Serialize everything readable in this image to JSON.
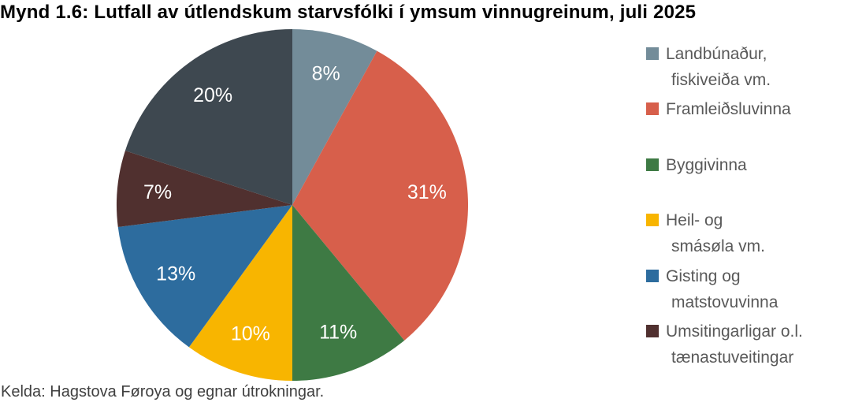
{
  "title": "Mynd 1.6: Lutfall av útlendskum starvsfólki í ymsum vinnugreinum, juli 2025",
  "source": "Kelda: Hagstova Føroya og egnar útrokningar.",
  "chart_data": {
    "type": "pie",
    "unit": "%",
    "start_angle_deg": 0,
    "direction": "clockwise",
    "label_color": "#FFFFFF",
    "legend_position": "right",
    "slices": [
      {
        "label": "Landbúnaður, fiskiveiða vm.",
        "value": 8,
        "display": "8%",
        "color": "#738C99"
      },
      {
        "label": "Framleiðsluvinna",
        "value": 31,
        "display": "31%",
        "color": "#D75F4B"
      },
      {
        "label": "Byggivinna",
        "value": 11,
        "display": "11%",
        "color": "#3E7A44"
      },
      {
        "label": "Heil- og smásøla vm.",
        "value": 10,
        "display": "10%",
        "color": "#F8B500"
      },
      {
        "label": "Gisting og matstovuvinna",
        "value": 13,
        "display": "13%",
        "color": "#2D6C9E"
      },
      {
        "label": "Umsitingarligar o.l. tænastuveitingar",
        "value": 7,
        "display": "7%",
        "color": "#50302F"
      },
      {
        "label": "",
        "value": 20,
        "display": "20%",
        "color": "#3E4850"
      }
    ]
  },
  "legend": {
    "text_color": "#595959",
    "items": [
      {
        "slice_index": 0,
        "lines": [
          "Landbúnaður,",
          "fiskiveiða vm."
        ]
      },
      {
        "slice_index": 1,
        "lines": [
          "Framleiðsluvinna"
        ]
      },
      {
        "slice_index": 2,
        "lines": [
          "Byggivinna"
        ]
      },
      {
        "slice_index": 3,
        "lines": [
          "Heil- og",
          "smásøla vm."
        ]
      },
      {
        "slice_index": 4,
        "lines": [
          "Gisting og",
          "matstovuvinna"
        ]
      },
      {
        "slice_index": 5,
        "lines": [
          "Umsitingarligar o.l.",
          "tænastuveitingar"
        ]
      }
    ]
  }
}
